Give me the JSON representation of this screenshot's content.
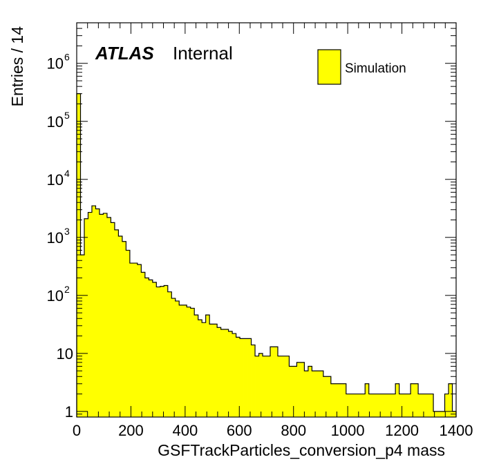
{
  "chart_data": {
    "type": "bar",
    "xlabel": "GSFTrackParticles_conversion_p4 mass",
    "ylabel": "Entries / 14",
    "x_scale": "linear",
    "y_scale": "log",
    "xlim": [
      0,
      1400
    ],
    "ylim": [
      0.8,
      5000000
    ],
    "bin_width": 14,
    "x_tick_labels": [
      "0",
      "200",
      "400",
      "600",
      "800",
      "1000",
      "1200",
      "1400"
    ],
    "y_ticks": [
      {
        "value": 1,
        "base": "1",
        "exp": ""
      },
      {
        "value": 10,
        "base": "10",
        "exp": ""
      },
      {
        "value": 100,
        "base": "10",
        "exp": "2"
      },
      {
        "value": 1000,
        "base": "10",
        "exp": "3"
      },
      {
        "value": 10000,
        "base": "10",
        "exp": "4"
      },
      {
        "value": 100000,
        "base": "10",
        "exp": "5"
      },
      {
        "value": 1000000,
        "base": "10",
        "exp": "6"
      }
    ],
    "series": [
      {
        "name": "Simulation",
        "color": "#ffff00",
        "edge_color": "#000000",
        "bin_low_edges": [
          0,
          14,
          28,
          42,
          56,
          70,
          84,
          98,
          112,
          126,
          140,
          154,
          168,
          182,
          196,
          210,
          224,
          238,
          252,
          266,
          280,
          294,
          308,
          322,
          336,
          350,
          364,
          378,
          392,
          406,
          420,
          434,
          448,
          462,
          476,
          490,
          504,
          518,
          532,
          546,
          560,
          574,
          588,
          602,
          616,
          630,
          644,
          658,
          672,
          686,
          700,
          714,
          728,
          742,
          756,
          770,
          784,
          798,
          812,
          826,
          840,
          854,
          868,
          882,
          896,
          910,
          924,
          938,
          952,
          966,
          980,
          994,
          1008,
          1022,
          1036,
          1050,
          1064,
          1078,
          1092,
          1106,
          1120,
          1134,
          1148,
          1162,
          1176,
          1190,
          1204,
          1218,
          1232,
          1246,
          1260,
          1274,
          1288,
          1302,
          1316,
          1330,
          1344,
          1358,
          1372,
          1386
        ],
        "values": [
          300000,
          500,
          2100,
          2700,
          3500,
          3100,
          2500,
          2600,
          2200,
          1800,
          1350,
          1050,
          850,
          600,
          360,
          360,
          340,
          250,
          200,
          185,
          168,
          140,
          143,
          148,
          115,
          89,
          80,
          68,
          68,
          63,
          60,
          46,
          38,
          34,
          46,
          32,
          32,
          28,
          26,
          26,
          24,
          22,
          19,
          18,
          18,
          18,
          14,
          9,
          10,
          9,
          9,
          13,
          13,
          9,
          9,
          9,
          6,
          6,
          7,
          7,
          5,
          6,
          5,
          5,
          5,
          4,
          4,
          3,
          3,
          3,
          3,
          2,
          2,
          2,
          2,
          2,
          3,
          2,
          2,
          2,
          2,
          2,
          2,
          2,
          3,
          2,
          2,
          2,
          3,
          3,
          2,
          2,
          2,
          2,
          1,
          1,
          1,
          2,
          3,
          1
        ]
      }
    ],
    "legend": {
      "entries": [
        "Simulation"
      ],
      "position": "top-right"
    },
    "annotations": {
      "experiment": "ATLAS",
      "status": "Internal"
    },
    "grid": false
  }
}
